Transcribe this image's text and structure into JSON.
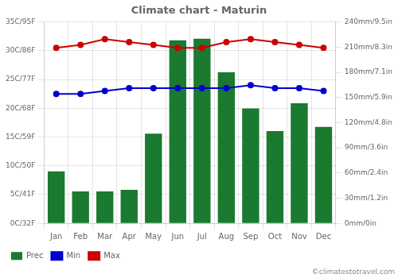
{
  "chart_data": {
    "type": "bar",
    "title": "Climate chart - Maturin",
    "categories": [
      "Jan",
      "Feb",
      "Mar",
      "Apr",
      "May",
      "Jun",
      "Jul",
      "Aug",
      "Sep",
      "Oct",
      "Nov",
      "Dec"
    ],
    "series": [
      {
        "name": "Prec",
        "type": "bar",
        "axis": "y2",
        "color": "#1a7a30",
        "values": [
          62,
          38,
          38,
          40,
          107,
          218,
          220,
          180,
          137,
          110,
          143,
          115
        ]
      },
      {
        "name": "Min",
        "type": "line",
        "axis": "y",
        "color": "#0000cc",
        "marker": "circle",
        "values": [
          22.5,
          22.5,
          23.0,
          23.5,
          23.5,
          23.5,
          23.5,
          23.5,
          24.0,
          23.5,
          23.5,
          23.0
        ]
      },
      {
        "name": "Max",
        "type": "line",
        "axis": "y",
        "color": "#cc0000",
        "marker": "circle",
        "values": [
          30.5,
          31.0,
          32.0,
          31.5,
          31.0,
          30.5,
          30.5,
          31.5,
          32.0,
          31.5,
          31.0,
          30.5
        ]
      }
    ],
    "ylim": [
      0,
      35
    ],
    "yticks": [
      {
        "value": 0,
        "label": "0C/32F"
      },
      {
        "value": 5,
        "label": "5C/41F"
      },
      {
        "value": 10,
        "label": "10C/50F"
      },
      {
        "value": 15,
        "label": "15C/59F"
      },
      {
        "value": 20,
        "label": "20C/68F"
      },
      {
        "value": 25,
        "label": "25C/77F"
      },
      {
        "value": 30,
        "label": "30C/86F"
      },
      {
        "value": 35,
        "label": "35C/95F"
      }
    ],
    "y2lim": [
      0,
      240
    ],
    "y2ticks": [
      {
        "value": 0,
        "label": "0mm/0in"
      },
      {
        "value": 30,
        "label": "30mm/1.2in"
      },
      {
        "value": 60,
        "label": "60mm/2.4in"
      },
      {
        "value": 90,
        "label": "90mm/3.6in"
      },
      {
        "value": 120,
        "label": "120mm/4.8in"
      },
      {
        "value": 150,
        "label": "150mm/5.9in"
      },
      {
        "value": 180,
        "label": "180mm/7.1in"
      },
      {
        "value": 210,
        "label": "210mm/8.3in"
      },
      {
        "value": 240,
        "label": "240mm/9.5in"
      }
    ],
    "grid": true,
    "legend": "bottom",
    "annotations": [
      "©climatestotravel.com"
    ]
  }
}
